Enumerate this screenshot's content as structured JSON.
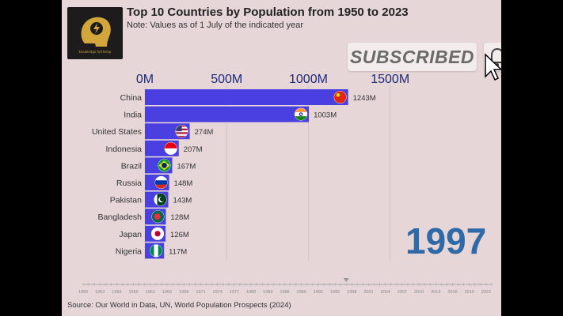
{
  "header": {
    "title": "Top 10 Countries by Population from 1950 to 2023",
    "subtitle": "Note: Values as of 1 July of the indicated year"
  },
  "logo": {
    "text": "knowledge full temp"
  },
  "subscribe": {
    "label": "SUBSCRIBED"
  },
  "current_year": "1997",
  "source": "Source: Our World in Data, UN, World Population Prospects (2024)",
  "colors": {
    "bar": "#4a3fe0",
    "year": "#2e6aa8",
    "background": "#e7d6d7"
  },
  "chart_data": {
    "type": "bar",
    "orientation": "horizontal",
    "title": "Top 10 Countries by Population from 1950 to 2023",
    "year": 1997,
    "categories": [
      "China",
      "India",
      "United States",
      "Indonesia",
      "Brazil",
      "Russia",
      "Pakistan",
      "Bangladesh",
      "Japan",
      "Nigeria"
    ],
    "values": [
      1243,
      1003,
      274,
      207,
      167,
      148,
      143,
      128,
      126,
      117
    ],
    "value_labels": [
      "1243M",
      "1003M",
      "274M",
      "207M",
      "167M",
      "148M",
      "143M",
      "128M",
      "126M",
      "117M"
    ],
    "flags": [
      "china-flag",
      "india-flag",
      "usa-flag",
      "indonesia-flag",
      "brazil-flag",
      "russia-flag",
      "pakistan-flag",
      "bangladesh-flag",
      "japan-flag",
      "nigeria-flag"
    ],
    "x_ticks": [
      0,
      500,
      1000,
      1500
    ],
    "x_tick_labels": [
      "0M",
      "500M",
      "1000M",
      "1500M"
    ],
    "xlim": [
      0,
      1700
    ],
    "timeline": {
      "range": [
        1950,
        2023
      ],
      "current": 1997,
      "labels": [
        "1950",
        "1953",
        "1956",
        "1959",
        "1962",
        "1965",
        "1968",
        "1971",
        "1974",
        "1977",
        "1980",
        "1983",
        "1986",
        "1989",
        "1992",
        "1995",
        "1998",
        "2001",
        "2004",
        "2007",
        "2010",
        "2013",
        "2016",
        "2019",
        "2022"
      ]
    }
  }
}
